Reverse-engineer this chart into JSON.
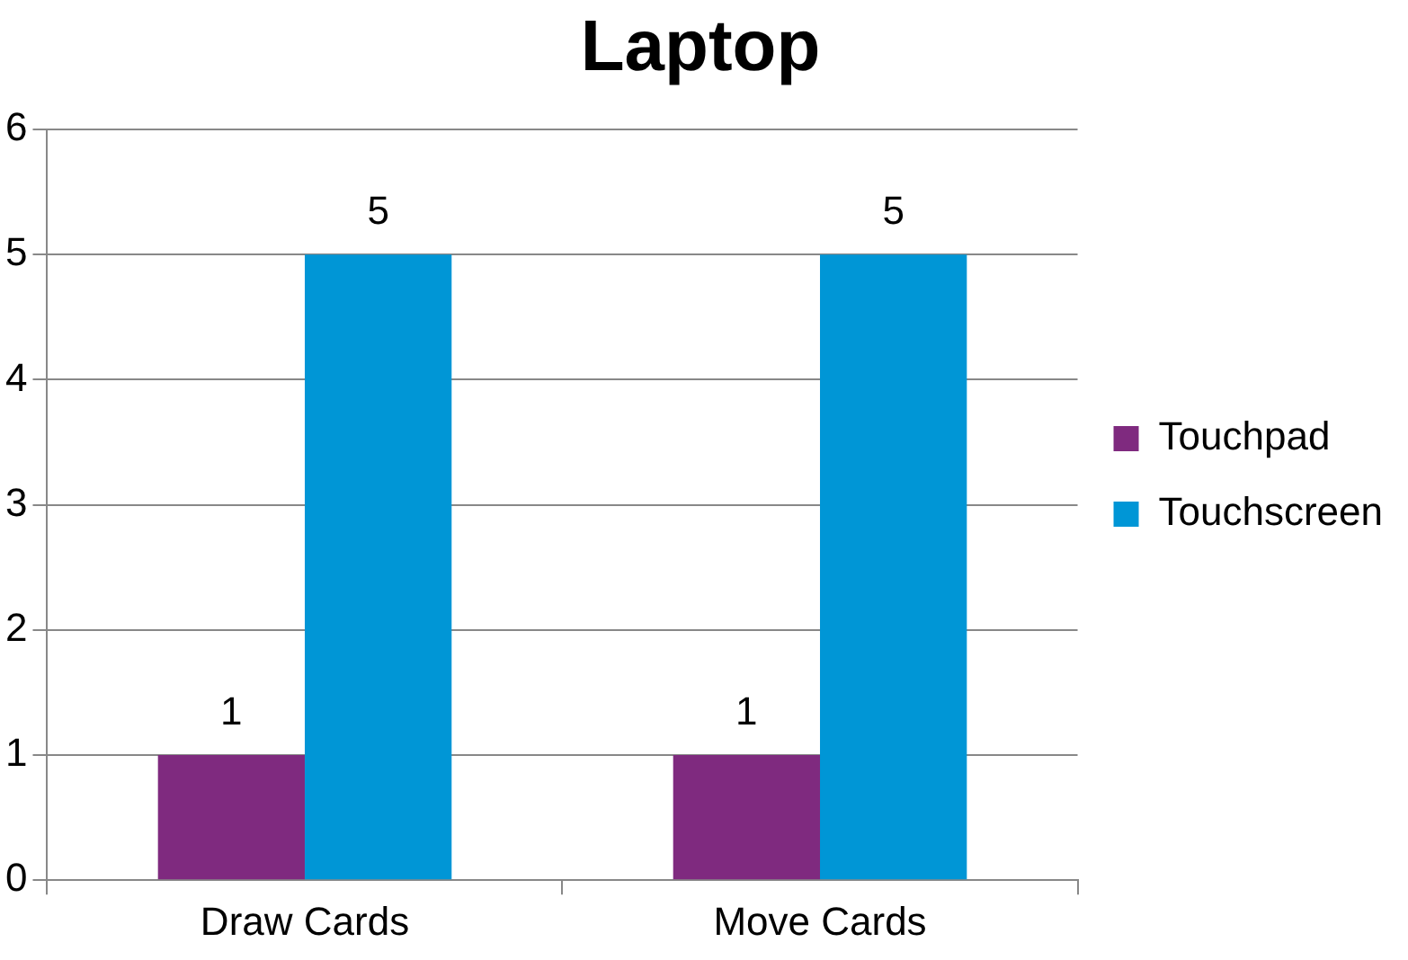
{
  "chart_data": {
    "type": "bar",
    "title": "Laptop",
    "categories": [
      "Draw Cards",
      "Move Cards"
    ],
    "series": [
      {
        "name": "Touchpad",
        "color": "#7f2a7f",
        "values": [
          1,
          1
        ]
      },
      {
        "name": "Touchscreen",
        "color": "#0096d6",
        "values": [
          5,
          5
        ]
      }
    ],
    "ylim": [
      0,
      6
    ],
    "yticks": [
      0,
      1,
      2,
      3,
      4,
      5,
      6
    ],
    "grid": "y",
    "legend": "right",
    "data_labels": true
  }
}
